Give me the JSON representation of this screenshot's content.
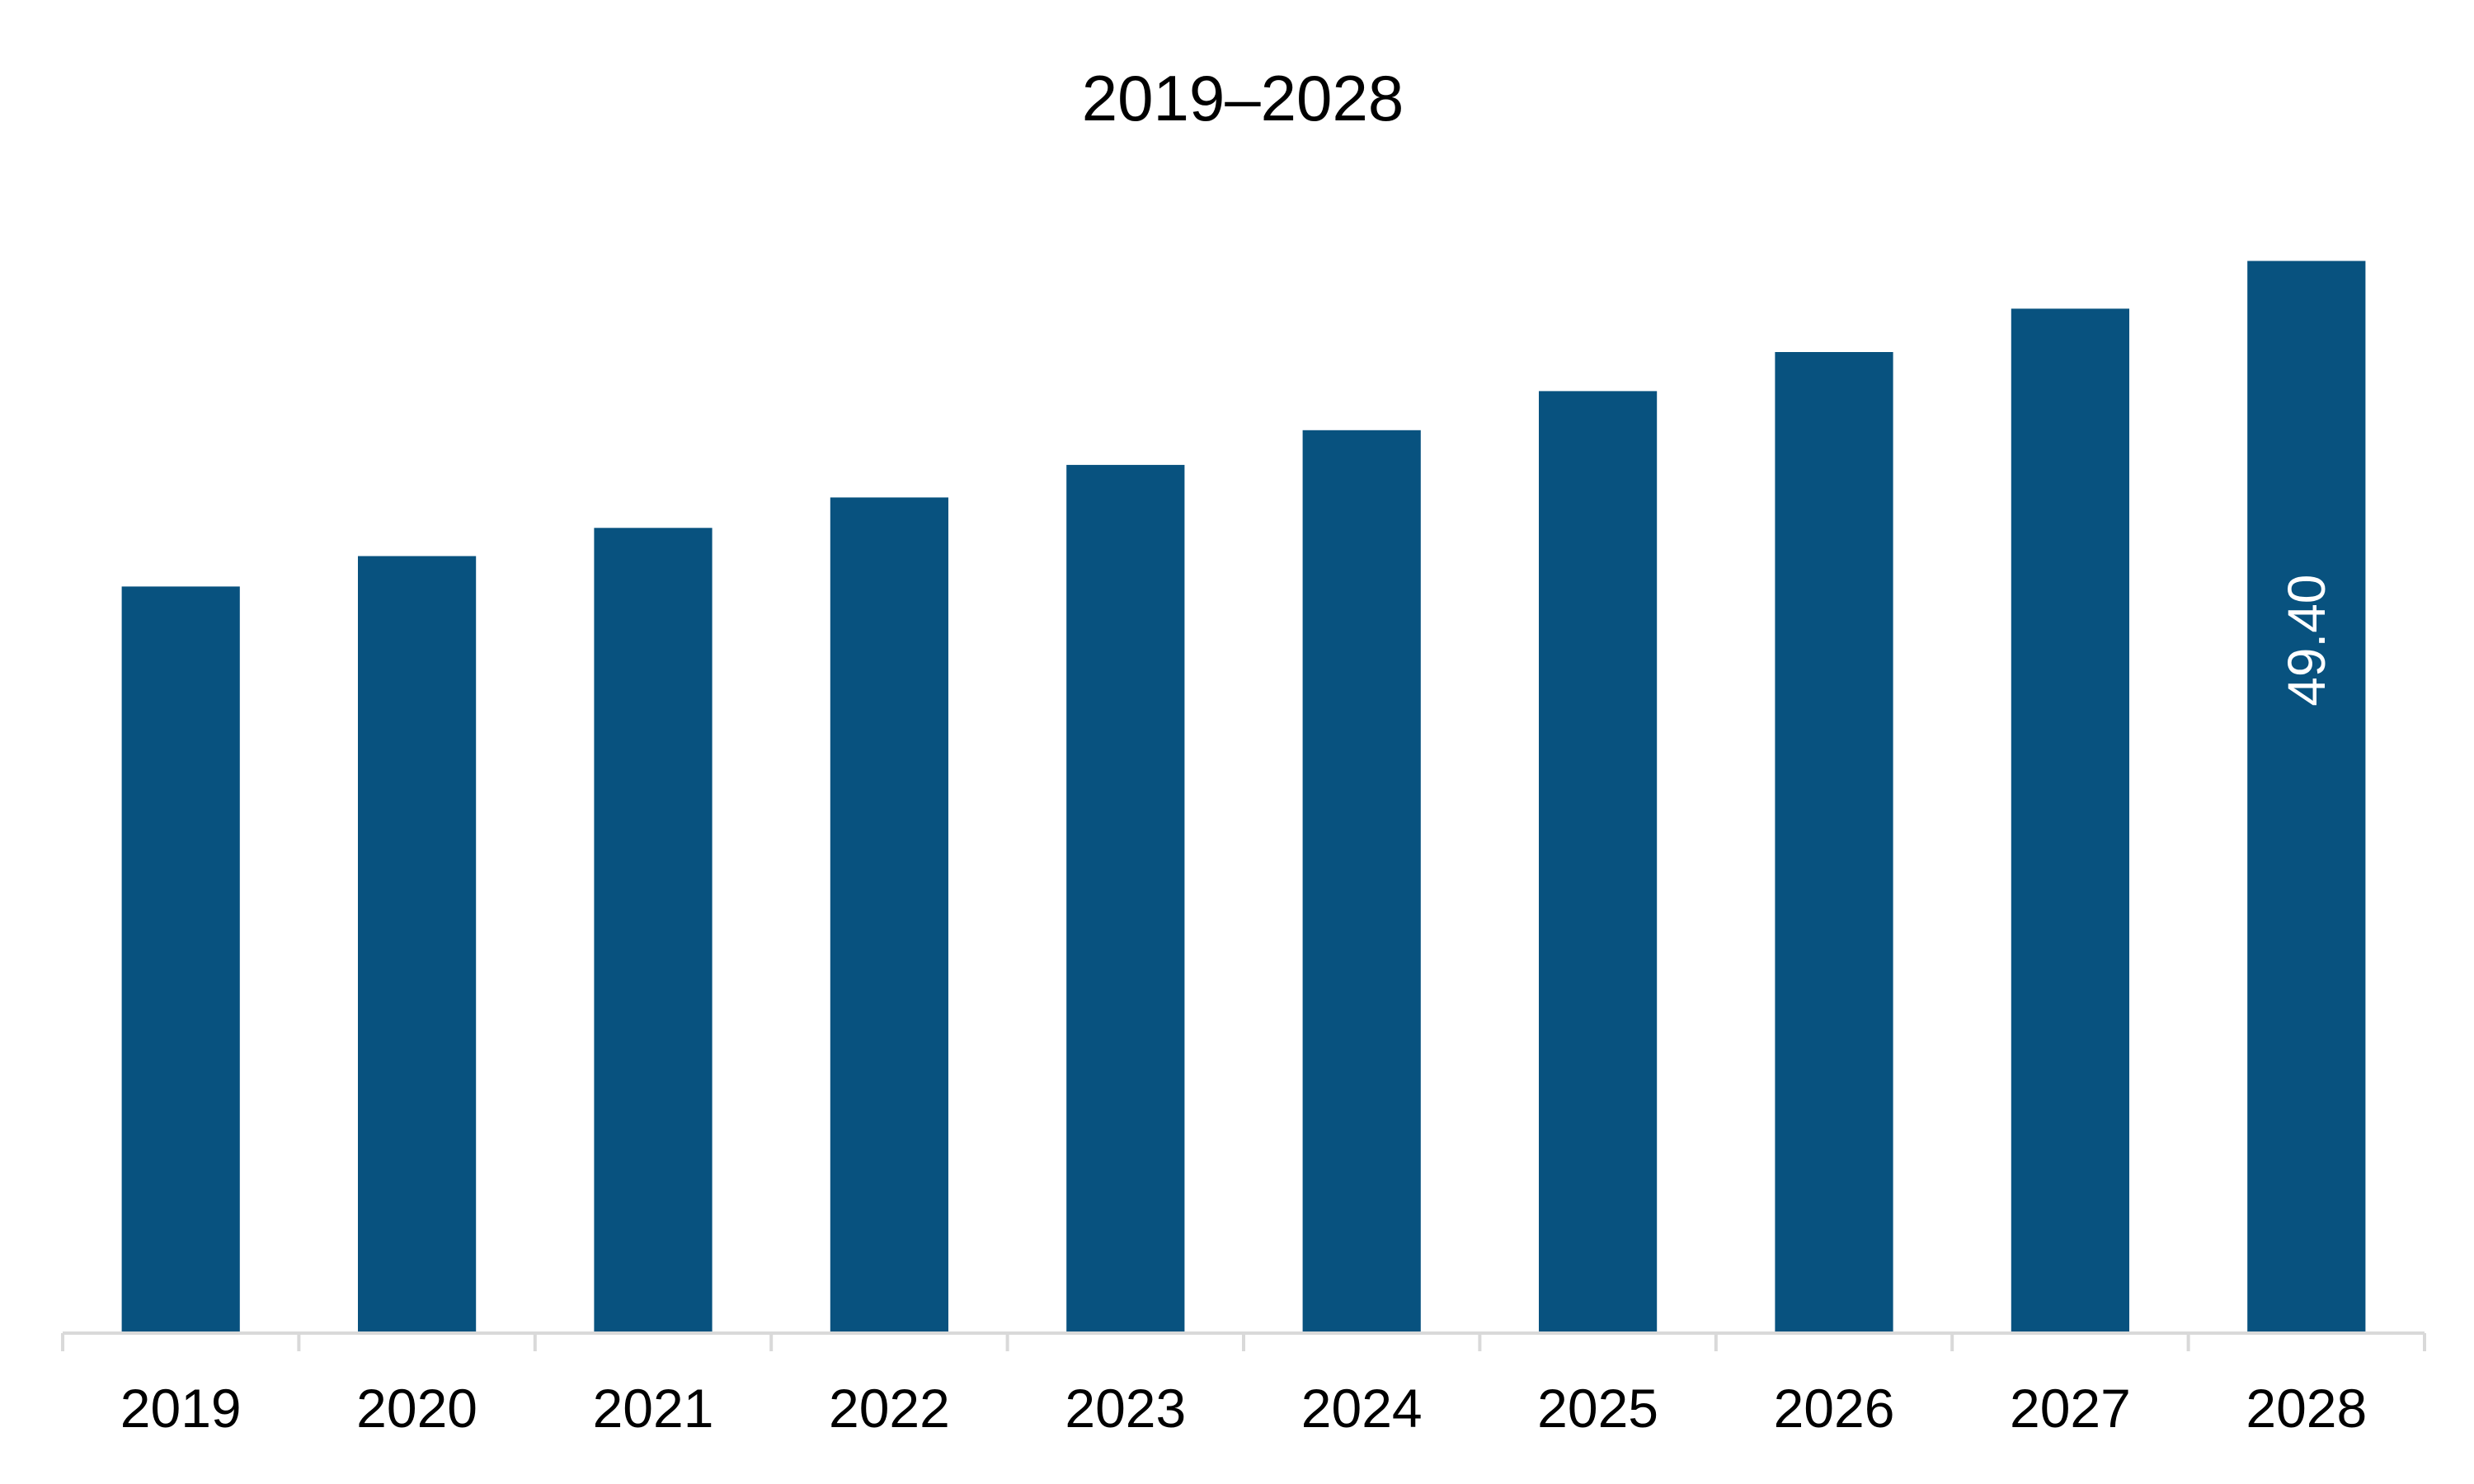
{
  "chart_data": {
    "type": "bar",
    "title": "2019–2028",
    "xlabel": "",
    "ylabel": "",
    "categories": [
      "2019",
      "2020",
      "2021",
      "2022",
      "2023",
      "2024",
      "2025",
      "2026",
      "2027",
      "2028"
    ],
    "series": [
      {
        "values": [
          34.4,
          35.8,
          37.1,
          38.5,
          40.0,
          41.6,
          43.4,
          45.2,
          47.2,
          49.4
        ],
        "data_labels": [
          "",
          "",
          "",
          "",
          "",
          "",
          "",
          "",
          "",
          "49.40"
        ]
      }
    ],
    "ylim": [
      0,
      52
    ],
    "grid": false,
    "legend": "none",
    "bar_color": "#08527f",
    "axis_color": "#d9d9d9"
  }
}
